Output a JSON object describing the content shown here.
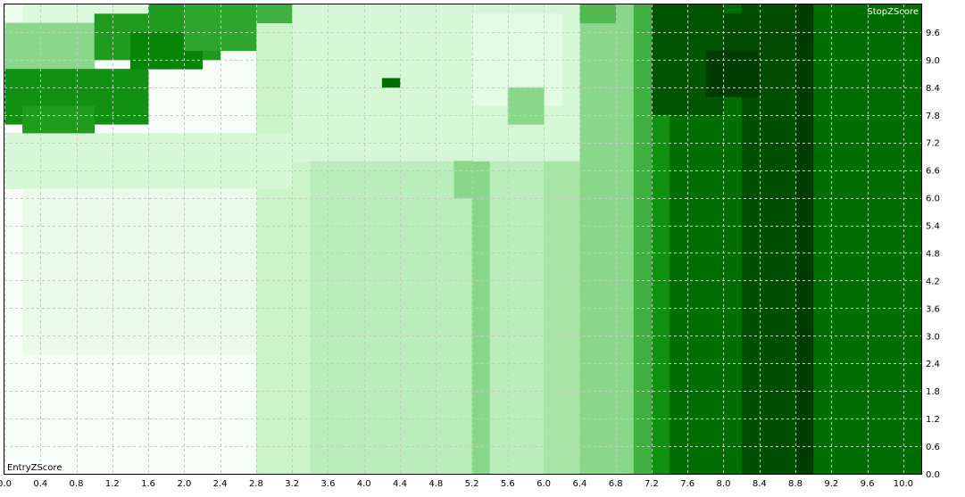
{
  "chart_data": {
    "type": "heatmap",
    "xlabel": "EntryZScore",
    "ylabel": "StopZScore",
    "x_ticks": [
      "0.0",
      "0.4",
      "0.8",
      "1.2",
      "1.6",
      "2.0",
      "2.4",
      "2.8",
      "3.2",
      "3.6",
      "4.0",
      "4.4",
      "4.8",
      "5.2",
      "5.6",
      "6.0",
      "6.4",
      "6.8",
      "7.2",
      "7.6",
      "8.0",
      "8.4",
      "8.8",
      "9.2",
      "9.6",
      "10.0"
    ],
    "y_ticks": [
      "0.0",
      "0.6",
      "1.2",
      "1.8",
      "2.4",
      "3.0",
      "3.6",
      "4.2",
      "4.8",
      "5.4",
      "6.0",
      "6.6",
      "7.2",
      "7.8",
      "8.4",
      "9.0",
      "9.6"
    ],
    "xlim": [
      0,
      10.2
    ],
    "ylim": [
      0,
      10.2
    ],
    "grid": true,
    "colormap": [
      "#ffffff",
      "#d4f7d4",
      "#a8e6a8",
      "#5cbf5c",
      "#2ea62e",
      "#0a8a0a",
      "#006e00",
      "#005000",
      "#003500"
    ],
    "columns": [
      {
        "x0": 0.0,
        "x1": 2.8,
        "level": 0.02
      },
      {
        "x0": 2.8,
        "x1": 3.4,
        "level": 0.15
      },
      {
        "x0": 3.4,
        "x1": 5.2,
        "level": 0.2
      },
      {
        "x0": 5.2,
        "x1": 5.4,
        "level": 0.3
      },
      {
        "x0": 5.4,
        "x1": 6.0,
        "level": 0.2
      },
      {
        "x0": 6.0,
        "x1": 6.4,
        "level": 0.25
      },
      {
        "x0": 6.4,
        "x1": 7.0,
        "level": 0.3
      },
      {
        "x0": 7.0,
        "x1": 7.2,
        "level": 0.45
      },
      {
        "x0": 7.2,
        "x1": 7.4,
        "level": 0.6
      },
      {
        "x0": 7.4,
        "x1": 8.2,
        "level": 0.75
      },
      {
        "x0": 8.2,
        "x1": 8.8,
        "level": 0.88
      },
      {
        "x0": 8.8,
        "x1": 9.0,
        "level": 0.97
      },
      {
        "x0": 9.0,
        "x1": 10.2,
        "level": 0.75
      }
    ],
    "patches": [
      {
        "x0": 0.0,
        "x1": 0.2,
        "y0": 9.8,
        "y1": 10.2,
        "level": 0.05
      },
      {
        "x0": 0.2,
        "x1": 1.6,
        "y0": 9.8,
        "y1": 10.2,
        "level": 0.1
      },
      {
        "x0": 1.6,
        "x1": 2.4,
        "y0": 9.8,
        "y1": 10.2,
        "level": 0.55
      },
      {
        "x0": 2.4,
        "x1": 3.2,
        "y0": 9.8,
        "y1": 10.2,
        "level": 0.45
      },
      {
        "x0": 0.0,
        "x1": 1.0,
        "y0": 8.8,
        "y1": 9.8,
        "level": 0.3
      },
      {
        "x0": 1.0,
        "x1": 2.4,
        "y0": 9.0,
        "y1": 10.0,
        "level": 0.55
      },
      {
        "x0": 0.0,
        "x1": 1.6,
        "y0": 7.6,
        "y1": 8.8,
        "level": 0.6
      },
      {
        "x0": 1.4,
        "x1": 2.2,
        "y0": 8.8,
        "y1": 9.6,
        "level": 0.65
      },
      {
        "x0": 0.2,
        "x1": 1.0,
        "y0": 7.2,
        "y1": 8.0,
        "level": 0.55
      },
      {
        "x0": 0.0,
        "x1": 0.2,
        "y0": 7.0,
        "y1": 7.4,
        "level": 0.75
      },
      {
        "x0": 2.0,
        "x1": 2.8,
        "y0": 9.2,
        "y1": 10.2,
        "level": 0.5
      },
      {
        "x0": 0.0,
        "x1": 3.2,
        "y0": 6.2,
        "y1": 7.4,
        "level": 0.12
      },
      {
        "x0": 0.2,
        "x1": 2.8,
        "y0": 2.6,
        "y1": 6.2,
        "level": 0.06
      },
      {
        "x0": 3.2,
        "x1": 6.4,
        "y0": 6.8,
        "y1": 10.2,
        "level": 0.12
      },
      {
        "x0": 5.0,
        "x1": 5.2,
        "y0": 6.0,
        "y1": 6.8,
        "level": 0.3
      },
      {
        "x0": 5.2,
        "x1": 6.2,
        "y0": 8.0,
        "y1": 10.0,
        "level": 0.08
      },
      {
        "x0": 5.6,
        "x1": 6.0,
        "y0": 7.6,
        "y1": 8.4,
        "level": 0.3
      },
      {
        "x0": 6.4,
        "x1": 6.8,
        "y0": 9.8,
        "y1": 10.2,
        "level": 0.4
      },
      {
        "x0": 7.2,
        "x1": 8.0,
        "y0": 7.8,
        "y1": 10.2,
        "level": 0.85
      },
      {
        "x0": 8.0,
        "x1": 8.8,
        "y0": 8.6,
        "y1": 10.0,
        "level": 0.9
      },
      {
        "x0": 7.8,
        "x1": 8.4,
        "y0": 8.2,
        "y1": 9.2,
        "level": 0.97
      },
      {
        "x0": 4.2,
        "x1": 4.4,
        "y0": 8.4,
        "y1": 8.6,
        "level": 0.75
      }
    ]
  }
}
